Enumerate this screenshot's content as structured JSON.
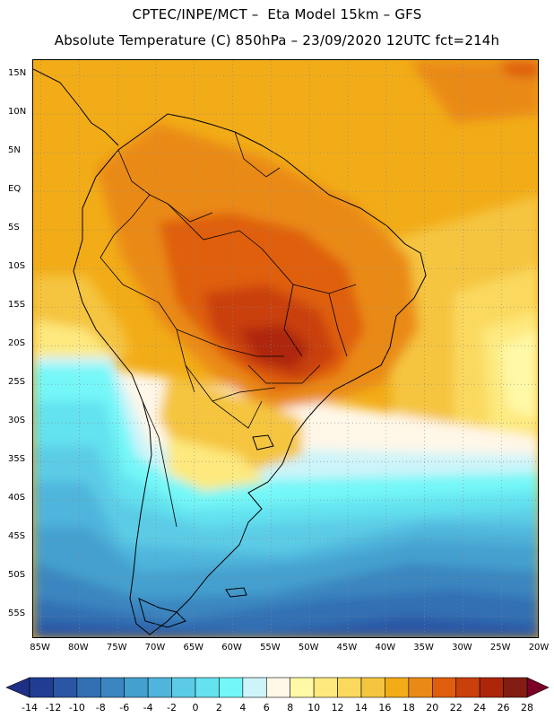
{
  "title": {
    "line1": "CPTEC/INPE/MCT –  Eta Model 15km – GFS",
    "line2": "Absolute Temperature (C) 850hPa – 23/09/2020 12UTC fct=214h"
  },
  "map": {
    "lat_labels": [
      "15N",
      "10N",
      "5N",
      "EQ",
      "5S",
      "10S",
      "15S",
      "20S",
      "25S",
      "30S",
      "35S",
      "40S",
      "45S",
      "50S",
      "55S"
    ],
    "lon_labels": [
      "85W",
      "80W",
      "75W",
      "70W",
      "65W",
      "60W",
      "55W",
      "50W",
      "45W",
      "40W",
      "35W",
      "30W",
      "25W",
      "20W"
    ],
    "lat_range": [
      17,
      -58
    ],
    "lon_range": [
      -86,
      -20
    ],
    "grid": "dotted"
  },
  "colorbar": {
    "labels": [
      "-14",
      "-12",
      "-10",
      "-8",
      "-6",
      "-4",
      "-2",
      "0",
      "2",
      "4",
      "6",
      "8",
      "10",
      "12",
      "14",
      "16",
      "18",
      "20",
      "22",
      "24",
      "26",
      "28"
    ],
    "colors": [
      "#213d93",
      "#2b56a4",
      "#3370b3",
      "#3b86c0",
      "#44a0cf",
      "#4fb5dc",
      "#5ccce6",
      "#64e2ef",
      "#74f7f8",
      "#cdf4f9",
      "#fff7e8",
      "#fff8a6",
      "#fde97e",
      "#fbd95f",
      "#f5c541",
      "#f2ac18",
      "#ea8a16",
      "#df5e0d",
      "#c9400c",
      "#ad2609",
      "#831c12"
    ],
    "arrow_low": "#1f2f86",
    "arrow_high": "#7a0026"
  }
}
